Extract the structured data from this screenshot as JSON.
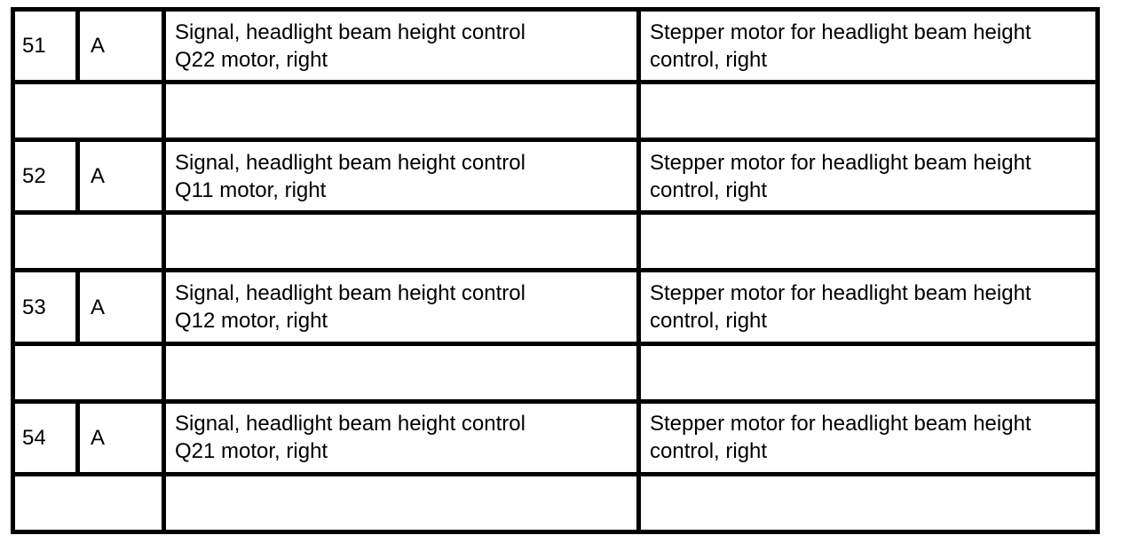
{
  "rows": [
    {
      "pin": "51",
      "type": "A",
      "signal_line1": "Signal, headlight beam height control",
      "signal_line2": "Q22 motor, right",
      "desc_line1": "Stepper motor for headlight beam height",
      "desc_line2": "control, right"
    },
    {
      "pin": "52",
      "type": "A",
      "signal_line1": "Signal, headlight beam height control",
      "signal_line2": "Q11 motor, right",
      "desc_line1": "Stepper motor for headlight beam height",
      "desc_line2": "control, right"
    },
    {
      "pin": "53",
      "type": "A",
      "signal_line1": "Signal, headlight beam height control",
      "signal_line2": "Q12 motor, right",
      "desc_line1": "Stepper motor for headlight beam height",
      "desc_line2": "control, right"
    },
    {
      "pin": "54",
      "type": "A",
      "signal_line1": "Signal, headlight beam height control",
      "signal_line2": "Q21 motor, right",
      "desc_line1": "Stepper motor for headlight beam height",
      "desc_line2": "control, right"
    }
  ]
}
